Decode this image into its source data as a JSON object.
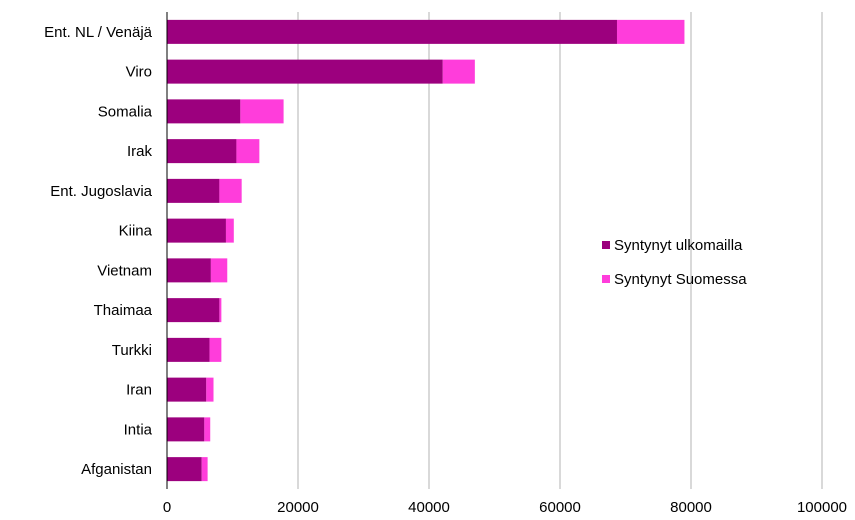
{
  "chart_data": {
    "type": "bar",
    "orientation": "horizontal",
    "stacked": true,
    "title": "",
    "xlabel": "",
    "ylabel": "",
    "categories": [
      "Ent. NL / Venäjä",
      "Viro",
      "Somalia",
      "Irak",
      "Ent. Jugoslavia",
      "Kiina",
      "Vietnam",
      "Thaimaa",
      "Turkki",
      "Iran",
      "Intia",
      "Afganistan"
    ],
    "series": [
      {
        "name": "Syntynyt ulkomailla",
        "color": "#9c007e",
        "values": [
          68700,
          42100,
          11200,
          10600,
          8000,
          9000,
          6700,
          8000,
          6500,
          6000,
          5700,
          5300
        ]
      },
      {
        "name": "Syntynyt Suomessa",
        "color": "#ff3ddb",
        "values": [
          10300,
          4900,
          6600,
          3500,
          3400,
          1200,
          2500,
          300,
          1800,
          1100,
          900,
          900
        ]
      }
    ],
    "xlim": [
      0,
      100000
    ],
    "xticks": [
      "0",
      "20000",
      "40000",
      "60000",
      "80000",
      "100000"
    ],
    "xtick_values": [
      0,
      20000,
      40000,
      60000,
      80000,
      100000
    ],
    "grid": "vertical",
    "legend_position": "right"
  }
}
